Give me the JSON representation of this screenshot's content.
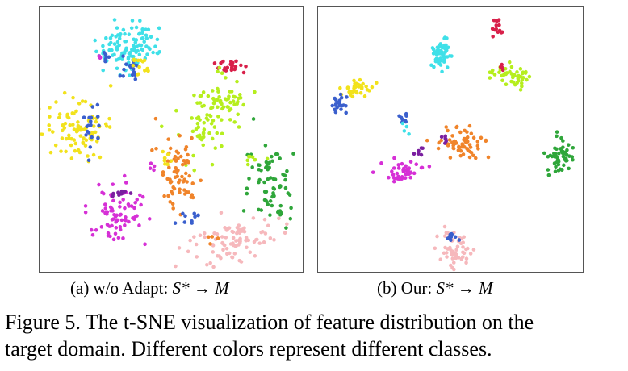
{
  "figure": {
    "subcaption_a": {
      "label": "(a) w/o Adapt: ",
      "math": "S* → M"
    },
    "subcaption_b": {
      "label": "(b) Our: ",
      "math": "S* → M"
    },
    "caption_line1": "Figure 5. The t-SNE visualization of feature distribution on the",
    "caption_line2": "target domain. Different colors represent different classes."
  },
  "class_colors": {
    "cyan": "#3fe0e8",
    "royal_blue": "#3a5fcd",
    "yellow": "#f2e21c",
    "magenta": "#d630d6",
    "purple": "#7a1fa0",
    "crimson": "#d8204a",
    "lime": "#b6ee1e",
    "orange": "#f0842a",
    "green": "#2fa63a",
    "pink": "#f6b8bc"
  },
  "chart_data": [
    {
      "type": "scatter",
      "title": "(a) w/o Adapt: S* → M",
      "series": []
    },
    {
      "type": "scatter",
      "title": "(b) Our: S* → M",
      "series": []
    }
  ]
}
